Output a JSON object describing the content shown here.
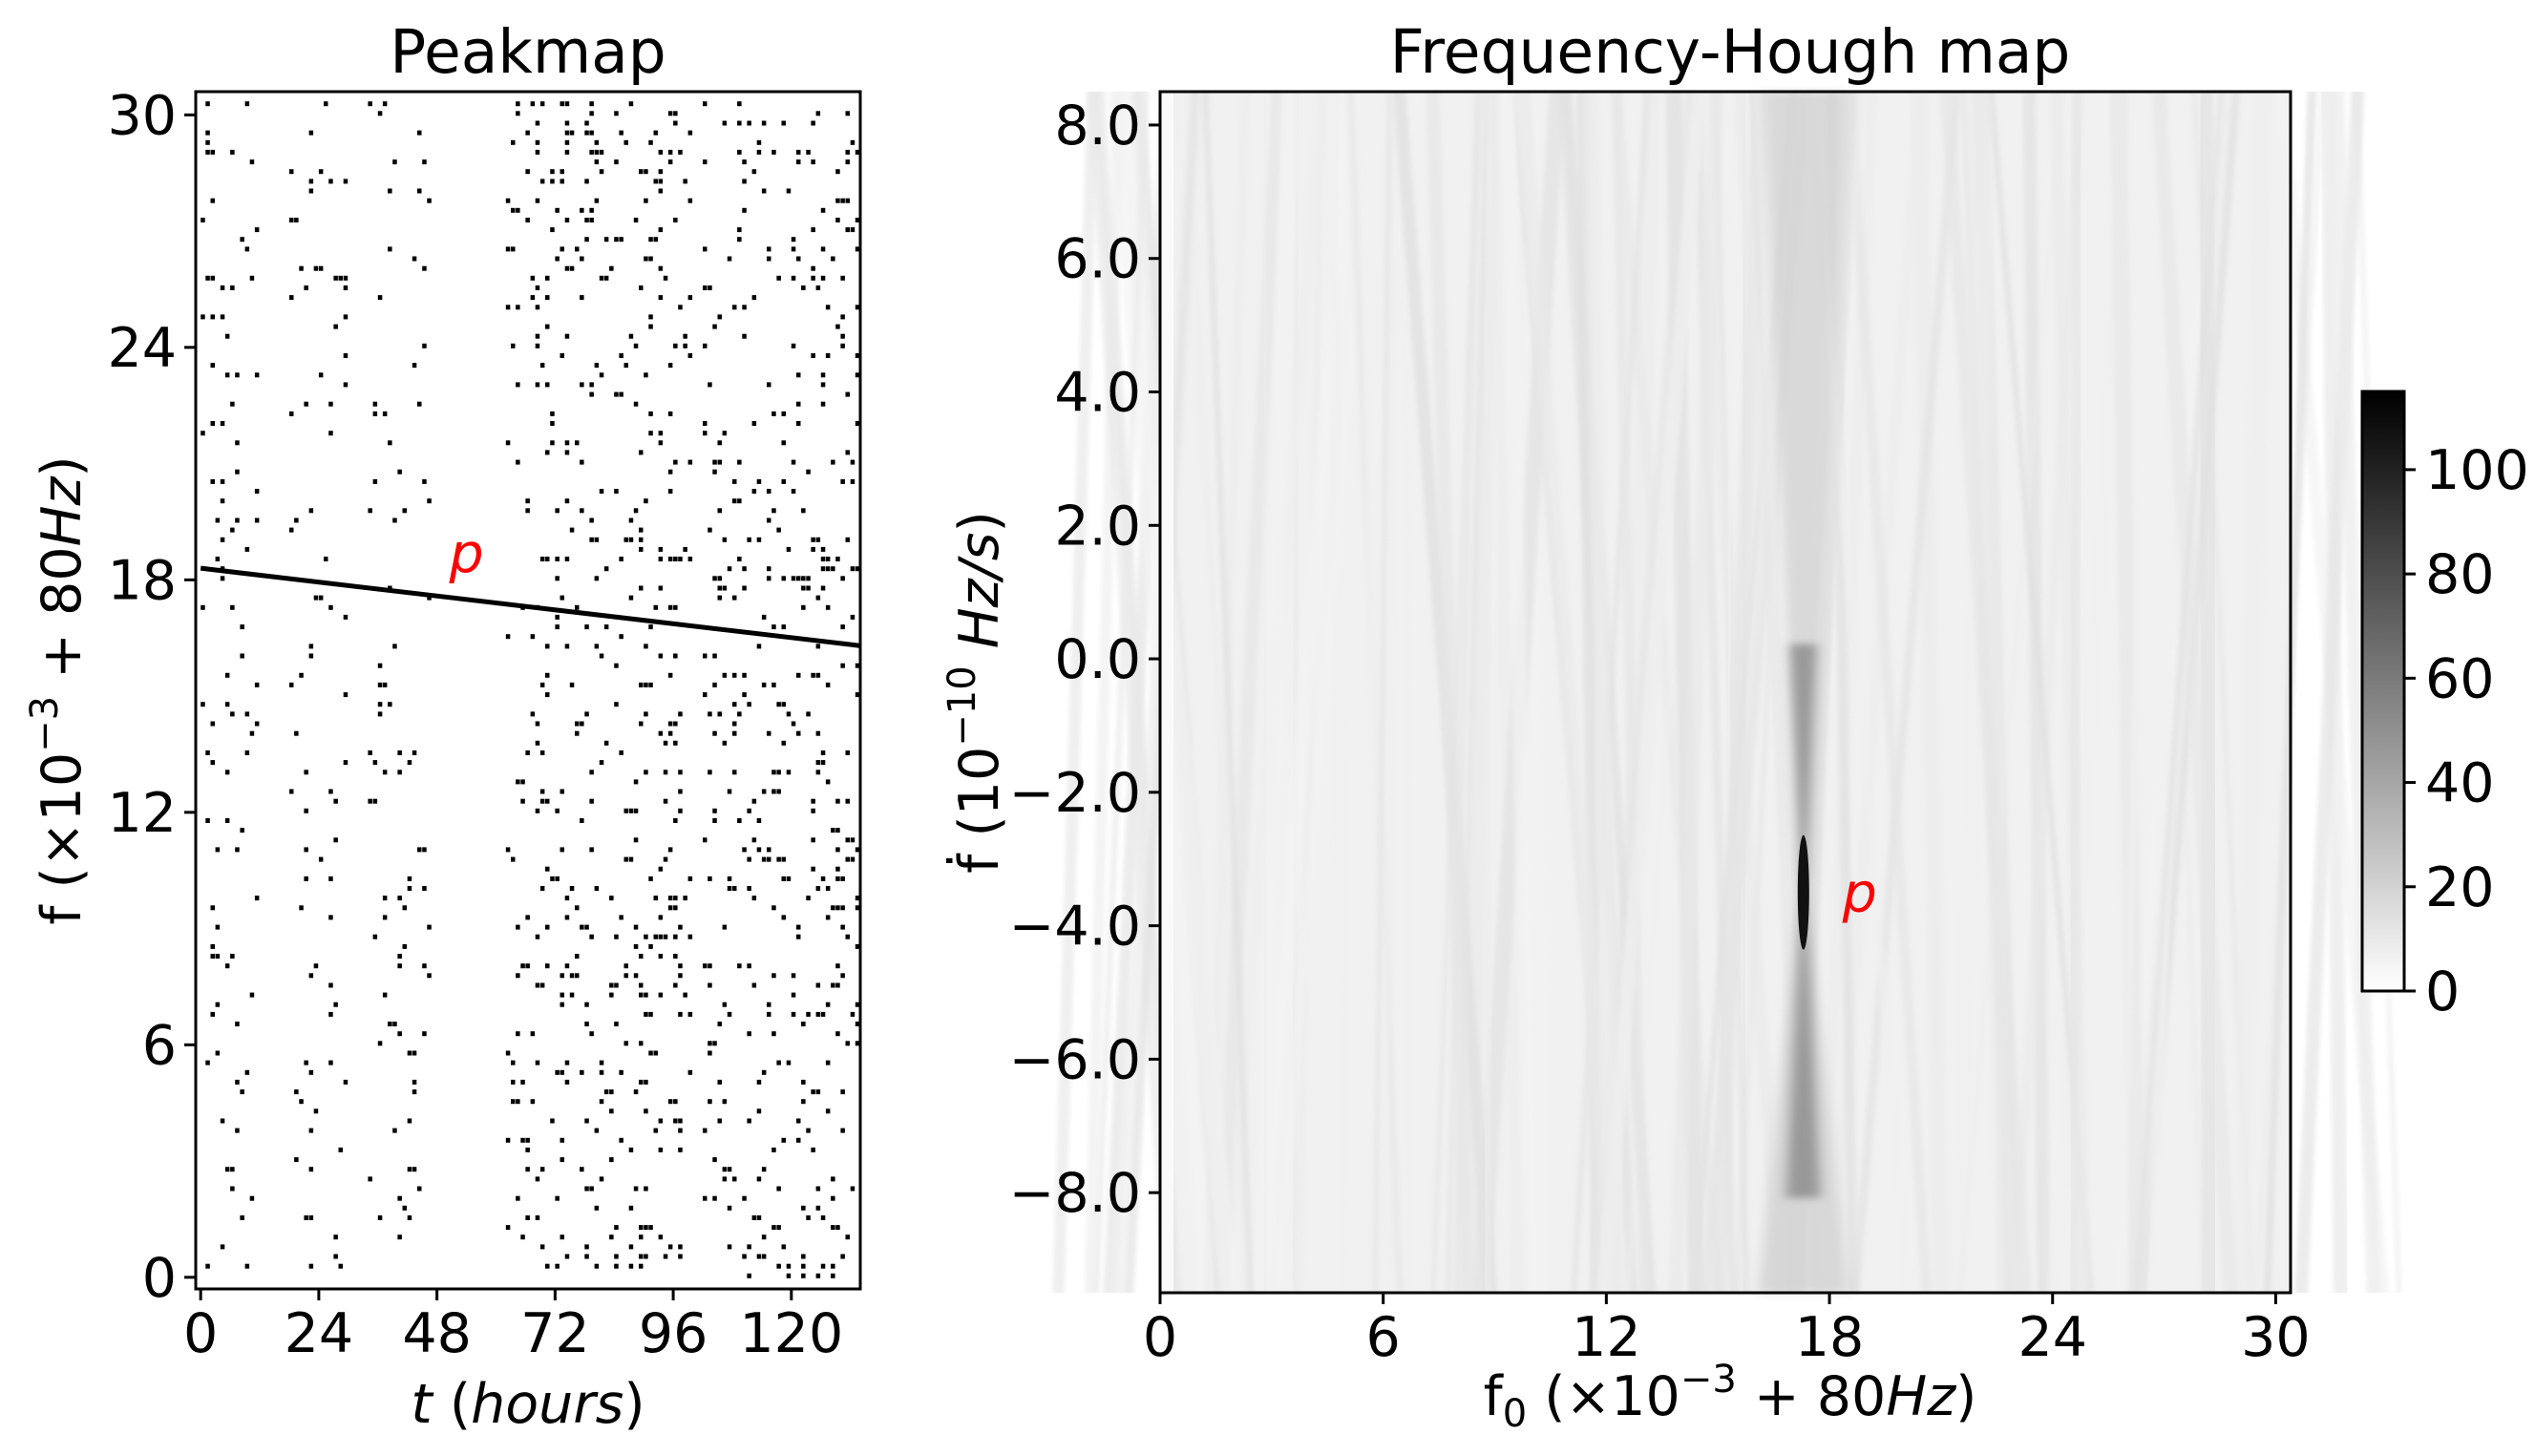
{
  "chart_data": [
    {
      "id": "peakmap",
      "type": "scatter",
      "title": "Peakmap",
      "xlabel": "t (hours)",
      "ylabel": "f (×10⁻³ + 80Hz)",
      "xlim": [
        -1,
        134
      ],
      "ylim": [
        -0.3,
        30.6
      ],
      "xticks": [
        0,
        24,
        48,
        72,
        96,
        120
      ],
      "xtick_labels": [
        "0",
        "24",
        "48",
        "72",
        "96",
        "120"
      ],
      "yticks": [
        0,
        6,
        12,
        18,
        24,
        30
      ],
      "ytick_labels": [
        "0",
        "6",
        "12",
        "18",
        "24",
        "30"
      ],
      "annotation": {
        "text": "p",
        "x": 54,
        "y": 18.7
      },
      "signal_track": {
        "name": "p",
        "start": {
          "t": 0,
          "f": 18.3
        },
        "end": {
          "t": 134,
          "f": 16.3
        }
      },
      "observed_segments_hours": [
        [
          0,
          12
        ],
        [
          18,
          30
        ],
        [
          34,
          47
        ],
        [
          62,
          100
        ],
        [
          102,
          134
        ]
      ],
      "background_peak_density": "random noise peaks in observed segments; data gap ~47–62 h"
    },
    {
      "id": "hough",
      "type": "heatmap",
      "title": "Frequency-Hough map",
      "xlabel": "f₀ (×10⁻³ + 80Hz)",
      "ylabel": "ḟ (10⁻¹⁰ Hz/s)",
      "xlim": [
        0,
        30.4
      ],
      "ylim": [
        -9.5,
        8.5
      ],
      "xticks": [
        0,
        6,
        12,
        18,
        24,
        30
      ],
      "xtick_labels": [
        "0",
        "6",
        "12",
        "18",
        "24",
        "30"
      ],
      "yticks": [
        8,
        6,
        4,
        2,
        0,
        -2,
        -4,
        -6,
        -8
      ],
      "ytick_labels": [
        "8.0",
        "6.0",
        "4.0",
        "2.0",
        "0.0",
        "−2.0",
        "−4.0",
        "−6.0",
        "−8.0"
      ],
      "peak": {
        "label": "p",
        "f0": 17.3,
        "fdot": -3.5,
        "value": 115
      },
      "annotation": {
        "text": "p",
        "x": 18.3,
        "y": -3.5
      },
      "colorbar": {
        "min": 0,
        "max": 115,
        "ticks": [
          0,
          20,
          40,
          60,
          80,
          100
        ],
        "tick_labels": [
          "0",
          "20",
          "40",
          "60",
          "80",
          "100"
        ],
        "colormap": "gray_r"
      }
    }
  ],
  "colors": {
    "annotation": "#ff0000",
    "axes": "#000000",
    "background": "#ffffff"
  },
  "labels": {
    "peakmap": {
      "title": "Peakmap",
      "xlabel_var": "t",
      "xlabel_unit": "hours",
      "ylabel_pre": "f (×10",
      "ylabel_exp": "−3",
      "ylabel_post": " + 80",
      "ylabel_unit": "Hz",
      "ylabel_close": ")",
      "marker": "p"
    },
    "hough": {
      "title": "Frequency-Hough map",
      "xlabel_var": "f",
      "xlabel_sub": "0",
      "xlabel_pre": " (×10",
      "xlabel_exp": "−3",
      "xlabel_post": " + 80",
      "xlabel_unit": "Hz",
      "xlabel_close": ")",
      "ylabel_var": "ḟ",
      "ylabel_pre": " (10",
      "ylabel_exp": "−10",
      "ylabel_unit": "Hz/s",
      "ylabel_close": ")",
      "marker": "p"
    }
  }
}
